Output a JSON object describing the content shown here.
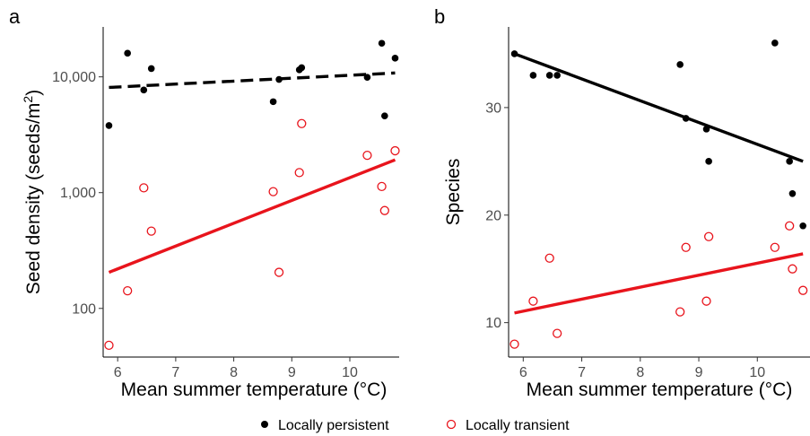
{
  "panels": [
    {
      "label": "a"
    },
    {
      "label": "b"
    }
  ],
  "legend": {
    "items": [
      {
        "label": "Locally persistent",
        "marker": "filled-circle",
        "color": "#000000"
      },
      {
        "label": "Locally transient",
        "marker": "open-circle",
        "color": "#e8141c"
      }
    ]
  },
  "colors": {
    "persistent": "#000000",
    "transient": "#e8141c"
  },
  "chart_data": [
    {
      "type": "scatter",
      "panel": "a",
      "xlabel": "Mean summer temperature (°C)",
      "ylabel_main": "Seed density (seeds/m",
      "ylabel_sup": "2",
      "ylabel_end": ")",
      "yscale": "log",
      "xlim": [
        5.75,
        10.85
      ],
      "ylim": [
        38,
        27000
      ],
      "xticks": [
        6,
        7,
        8,
        9,
        10
      ],
      "xtick_labels": [
        "6",
        "7",
        "8",
        "9",
        "10"
      ],
      "yticks": [
        100,
        1000,
        10000
      ],
      "ytick_labels": [
        "100",
        "1,000",
        "10,000"
      ],
      "series": [
        {
          "name": "Locally persistent",
          "marker": "filled",
          "points": [
            [
              5.85,
              3800
            ],
            [
              6.17,
              16000
            ],
            [
              6.45,
              7700
            ],
            [
              6.58,
              11800
            ],
            [
              8.68,
              6100
            ],
            [
              8.78,
              9500
            ],
            [
              9.13,
              11500
            ],
            [
              9.17,
              12000
            ],
            [
              10.3,
              9900
            ],
            [
              10.55,
              19500
            ],
            [
              10.6,
              4600
            ],
            [
              10.78,
              14500
            ]
          ],
          "fit": {
            "x": [
              5.85,
              10.78
            ],
            "y": [
              8100,
              10800
            ],
            "style": "dashed"
          }
        },
        {
          "name": "Locally transient",
          "marker": "open",
          "points": [
            [
              5.85,
              48
            ],
            [
              6.17,
              142
            ],
            [
              6.45,
              1100
            ],
            [
              6.58,
              465
            ],
            [
              8.68,
              1020
            ],
            [
              8.78,
              205
            ],
            [
              9.13,
              1490
            ],
            [
              9.17,
              3950
            ],
            [
              10.3,
              2100
            ],
            [
              10.55,
              1130
            ],
            [
              10.6,
              700
            ],
            [
              10.78,
              2300
            ]
          ],
          "fit": {
            "x": [
              5.85,
              10.78
            ],
            "y": [
              205,
              1920
            ],
            "style": "solid"
          }
        }
      ]
    },
    {
      "type": "scatter",
      "panel": "b",
      "xlabel": "Mean summer temperature (°C)",
      "ylabel": "Species",
      "xlim": [
        5.75,
        10.9
      ],
      "ylim": [
        6.8,
        37.5
      ],
      "xticks": [
        6,
        7,
        8,
        9,
        10
      ],
      "xtick_labels": [
        "6",
        "7",
        "8",
        "9",
        "10"
      ],
      "yticks": [
        10,
        20,
        30
      ],
      "ytick_labels": [
        "10",
        "20",
        "30"
      ],
      "series": [
        {
          "name": "Locally persistent",
          "marker": "filled",
          "points": [
            [
              5.85,
              35
            ],
            [
              6.17,
              33
            ],
            [
              6.45,
              33
            ],
            [
              6.58,
              33
            ],
            [
              8.68,
              34
            ],
            [
              8.78,
              29
            ],
            [
              9.13,
              28
            ],
            [
              9.17,
              25
            ],
            [
              10.3,
              36
            ],
            [
              10.55,
              25
            ],
            [
              10.6,
              22
            ],
            [
              10.78,
              19
            ]
          ],
          "fit": {
            "x": [
              5.85,
              10.78
            ],
            "y": [
              35,
              25
            ],
            "style": "solid"
          }
        },
        {
          "name": "Locally transient",
          "marker": "open",
          "points": [
            [
              5.85,
              8
            ],
            [
              6.17,
              12
            ],
            [
              6.45,
              16
            ],
            [
              6.58,
              9
            ],
            [
              8.68,
              11
            ],
            [
              8.78,
              17
            ],
            [
              9.13,
              12
            ],
            [
              9.17,
              18
            ],
            [
              10.3,
              17
            ],
            [
              10.55,
              19
            ],
            [
              10.6,
              15
            ],
            [
              10.78,
              13
            ]
          ],
          "fit": {
            "x": [
              5.85,
              10.78
            ],
            "y": [
              10.9,
              16.4
            ],
            "style": "solid"
          }
        }
      ]
    }
  ]
}
